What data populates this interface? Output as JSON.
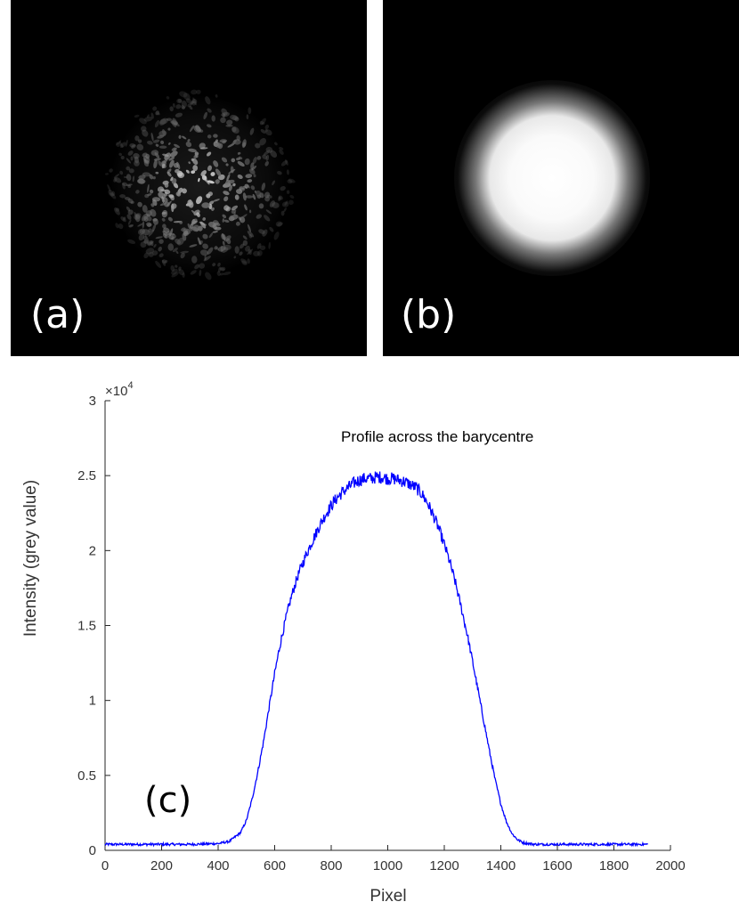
{
  "panels": {
    "a": {
      "label": "(a)"
    },
    "b": {
      "label": "(b)"
    }
  },
  "chart_data": {
    "type": "line",
    "panel_label": "(c)",
    "annotation": "Profile across the barycentre",
    "xlabel": "Pixel",
    "ylabel": "Intensity (grey value)",
    "y_multiplier": "×10",
    "y_multiplier_exp": "4",
    "xlim": [
      0,
      2000
    ],
    "ylim": [
      0,
      3
    ],
    "xticks": [
      "0",
      "200",
      "400",
      "600",
      "800",
      "1000",
      "1200",
      "1400",
      "1600",
      "1800",
      "2000"
    ],
    "yticks": [
      "0",
      "0.5",
      "1",
      "1.5",
      "2",
      "2.5",
      "3"
    ],
    "series": [
      {
        "color": "#0000ff",
        "x": [
          0,
          100,
          200,
          300,
          400,
          440,
          480,
          500,
          520,
          540,
          560,
          580,
          600,
          620,
          640,
          660,
          680,
          700,
          720,
          740,
          760,
          780,
          800,
          820,
          840,
          860,
          880,
          900,
          920,
          940,
          960,
          980,
          1000,
          1020,
          1040,
          1060,
          1080,
          1100,
          1120,
          1140,
          1160,
          1180,
          1200,
          1220,
          1240,
          1260,
          1280,
          1300,
          1320,
          1340,
          1360,
          1380,
          1400,
          1420,
          1440,
          1460,
          1480,
          1500,
          1520,
          1540,
          1560,
          1600,
          1700,
          1800,
          1920
        ],
        "y": [
          0.04,
          0.04,
          0.04,
          0.04,
          0.045,
          0.06,
          0.12,
          0.2,
          0.34,
          0.52,
          0.72,
          0.95,
          1.18,
          1.38,
          1.55,
          1.7,
          1.82,
          1.92,
          2.01,
          2.09,
          2.17,
          2.24,
          2.3,
          2.35,
          2.39,
          2.42,
          2.45,
          2.47,
          2.48,
          2.48,
          2.49,
          2.49,
          2.48,
          2.48,
          2.47,
          2.46,
          2.44,
          2.42,
          2.38,
          2.32,
          2.24,
          2.15,
          2.04,
          1.92,
          1.78,
          1.62,
          1.45,
          1.26,
          1.06,
          0.86,
          0.66,
          0.47,
          0.31,
          0.19,
          0.11,
          0.07,
          0.05,
          0.045,
          0.04,
          0.04,
          0.04,
          0.04,
          0.04,
          0.04,
          0.04
        ]
      }
    ]
  }
}
